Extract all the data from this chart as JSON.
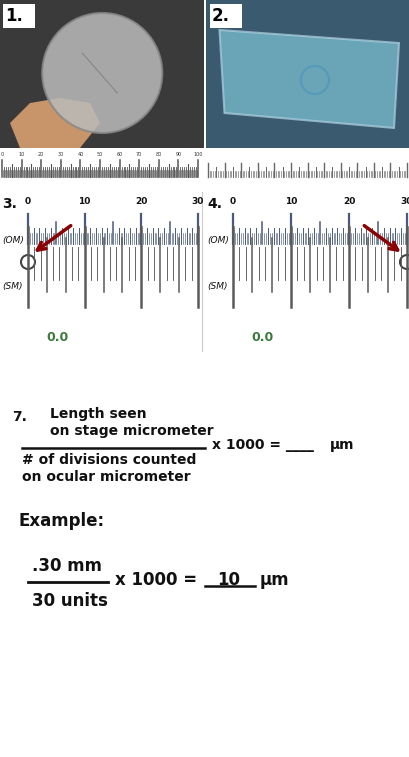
{
  "bg_top_color": "#1a1a1a",
  "bg_ruler_color": "#ffffff",
  "section_diag_bg": "#f5f3e8",
  "formula_bg": "#e8f0f8",
  "photo1_label": "1.",
  "photo2_label": "2.",
  "diagram3_label": "3.",
  "diagram4_label": "4.",
  "formula_label": "7.",
  "om_label": "(OM)",
  "sm_label": "(SM)",
  "scale_ticks_om": [
    0,
    10,
    20,
    30
  ],
  "zero_label": "0.0",
  "formula_line1": "Length seen",
  "formula_line2": "on stage micrometer",
  "formula_mid": "x 1000 = ____",
  "formula_unit": "μm",
  "formula_denom1": "# of divisions counted",
  "formula_denom2": "on ocular micrometer",
  "example_label": "Example:",
  "example_num": ".30 mm",
  "example_denom": "30 units",
  "example_eq": "x 1000 =",
  "example_result": "10",
  "example_unit": "μm",
  "arrow_color": "#8b0000",
  "tick_color_om": "#4a5a7a",
  "tick_color_sm": "#5a5a5a",
  "text_color_dark": "#111111",
  "zero_color": "#3a7a3a",
  "photo1_bg": "#3a3a3a",
  "photo2_bg": "#3a5a70",
  "photo1_disc_color": "#999999",
  "photo2_slide_color": "#6aacbe",
  "white_box_color": "#ffffff"
}
